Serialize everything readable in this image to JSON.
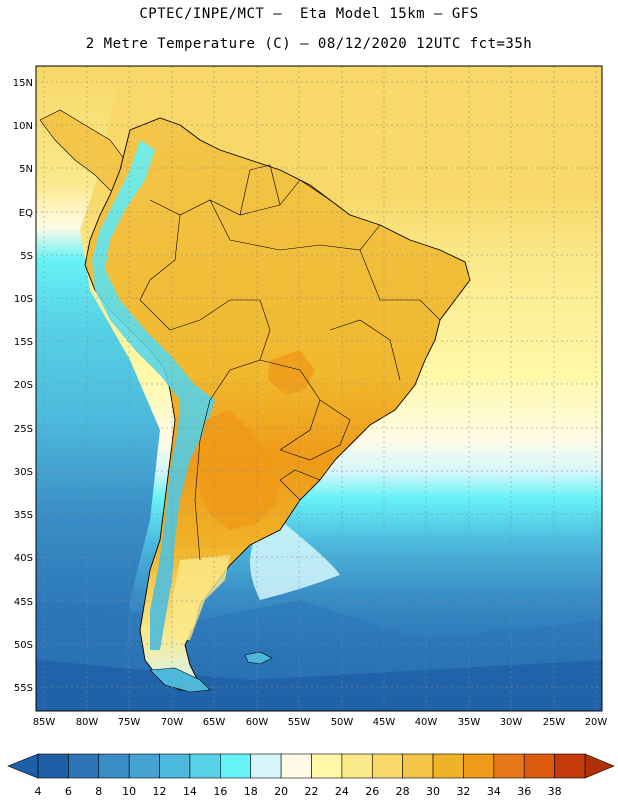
{
  "title": {
    "line1": "CPTEC/INPE/MCT –  Eta Model 15km – GFS",
    "line2": "2 Metre Temperature (C) – 08/12/2020 12UTC fct=35h"
  },
  "map": {
    "lat_labels": [
      "15N",
      "10N",
      "5N",
      "EQ",
      "5S",
      "10S",
      "15S",
      "20S",
      "25S",
      "30S",
      "35S",
      "40S",
      "45S",
      "50S",
      "55S"
    ],
    "lon_labels": [
      "85W",
      "80W",
      "75W",
      "70W",
      "65W",
      "60W",
      "55W",
      "50W",
      "45W",
      "40W",
      "35W",
      "30W",
      "25W",
      "20W"
    ]
  },
  "colorbar": {
    "labels": [
      "4",
      "6",
      "8",
      "10",
      "12",
      "14",
      "16",
      "18",
      "20",
      "22",
      "24",
      "26",
      "28",
      "30",
      "32",
      "34",
      "36",
      "38"
    ],
    "colors": [
      "#1f5fa6",
      "#2c76b8",
      "#3a8dc6",
      "#45a4d2",
      "#4cb9dc",
      "#57d2e6",
      "#66f2f6",
      "#d4f6fc",
      "#fffbe6",
      "#fef8a8",
      "#fbe98a",
      "#f7d868",
      "#f3c64a",
      "#f0b328",
      "#ef9a18",
      "#e8781a",
      "#dc5a0e",
      "#c43a08"
    ],
    "under_color": "#1f5fa6",
    "over_color": "#b03008"
  },
  "legend_icons": {
    "left_arrow": "triangle-left-icon",
    "right_arrow": "triangle-right-icon"
  }
}
